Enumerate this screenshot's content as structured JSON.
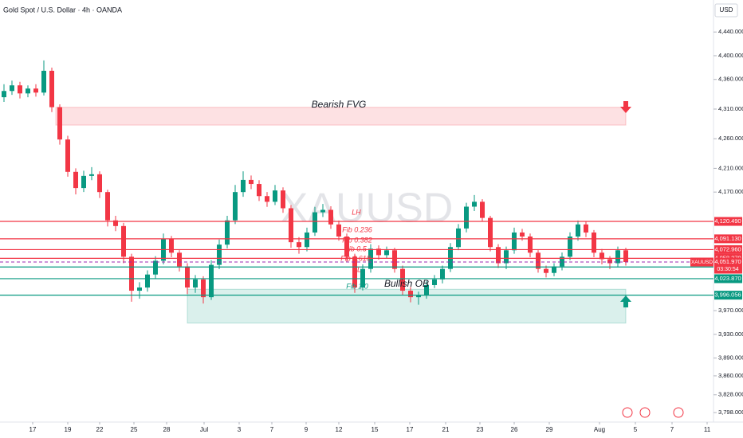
{
  "chart_data": {
    "type": "candlestick",
    "title": "Gold Spot / U.S. Dollar · 4h · OANDA",
    "currency": "USD",
    "watermark": "XAUUSD",
    "up_color": "#089981",
    "down_color": "#f23645",
    "open": [
      4330.0,
      4340.5,
      4350.0,
      4336.4,
      4344.6,
      4337.8,
      4374.6,
      4313.2,
      4258.7,
      4204.1,
      4176.8,
      4197.3,
      4200.0,
      4170.0,
      4122.3,
      4112.7,
      4060.9,
      4003.6,
      4009.0,
      4030.9,
      4054.1,
      4090.9,
      4067.7,
      4044.5,
      4009.0,
      4022.7,
      3992.7,
      4047.2,
      4081.3,
      4122.3,
      4170.0,
      4190.5,
      4183.6,
      4163.2,
      4153.6,
      4172.7,
      4142.7,
      4085.4,
      4077.2,
      4101.8,
      4135.9,
      4140.0,
      4115.4,
      4095.0,
      4060.9,
      4009.0,
      4040.4,
      4074.5,
      4063.6,
      4071.8,
      4040.4,
      4003.6,
      3992.7,
      3995.4,
      4013.1,
      4022.7,
      4040.4,
      4077.2,
      4108.6,
      4145.4,
      4153.6,
      4126.4,
      4077.2,
      4050.0,
      4071.8,
      4101.8,
      4095.0,
      4067.7,
      4040.4,
      4033.6,
      4044.5,
      4060.9,
      4095.0,
      4115.4,
      4101.8,
      4067.7,
      4056.8,
      4050.0,
      4071.8
    ],
    "high": [
      4352,
      4358,
      4356,
      4350,
      4352,
      4392,
      4380,
      4318,
      4265,
      4210,
      4206,
      4212,
      4205,
      4174,
      4130,
      4118,
      4066,
      4018,
      4038,
      4062,
      4100,
      4096,
      4072,
      4050,
      4030,
      4028,
      4055,
      4090,
      4130,
      4182,
      4205,
      4198,
      4190,
      4170,
      4182,
      4178,
      4148,
      4094,
      4110,
      4145,
      4150,
      4146,
      4122,
      4100,
      4066,
      4048,
      4082,
      4080,
      4078,
      4076,
      4046,
      4010,
      4002,
      4020,
      4030,
      4046,
      4084,
      4116,
      4152,
      4165,
      4158,
      4130,
      4082,
      4078,
      4110,
      4108,
      4100,
      4072,
      4046,
      4050,
      4068,
      4102,
      4122,
      4120,
      4106,
      4074,
      4062,
      4078,
      4076
    ],
    "low": [
      4322,
      4334,
      4328,
      4330,
      4331,
      4333,
      4305,
      4250,
      4196,
      4166,
      4170,
      4190,
      4160,
      4112,
      4104,
      4050,
      3985,
      3990,
      4002,
      4024,
      4048,
      4060,
      4036,
      3998,
      4000,
      3982,
      3988,
      4040,
      4075,
      4116,
      4162,
      4175,
      4155,
      4145,
      4148,
      4135,
      4076,
      4066,
      4070,
      4096,
      4128,
      4108,
      4088,
      4052,
      4000,
      4004,
      4034,
      4056,
      4058,
      4034,
      3996,
      3984,
      3980,
      3990,
      4008,
      4016,
      4035,
      4072,
      4102,
      4138,
      4120,
      4070,
      4042,
      4040,
      4066,
      4088,
      4060,
      4034,
      4026,
      4028,
      4038,
      4055,
      4088,
      4094,
      4060,
      4048,
      4040,
      4044,
      4046
    ],
    "close": [
      4340.5,
      4350.0,
      4336.4,
      4344.6,
      4337.8,
      4374.6,
      4313.2,
      4258.7,
      4204.1,
      4176.8,
      4197.3,
      4200.0,
      4170.0,
      4122.3,
      4112.7,
      4060.9,
      4003.6,
      4009.0,
      4030.9,
      4054.1,
      4090.9,
      4067.7,
      4044.5,
      4009.0,
      4022.7,
      3992.7,
      4047.2,
      4081.3,
      4122.3,
      4170.0,
      4190.5,
      4183.6,
      4163.2,
      4153.6,
      4172.7,
      4142.7,
      4085.4,
      4077.2,
      4101.8,
      4135.9,
      4140.0,
      4115.4,
      4095.0,
      4060.9,
      4009.0,
      4040.4,
      4074.5,
      4063.6,
      4071.8,
      4040.4,
      4003.6,
      3992.7,
      3995.4,
      4013.1,
      4022.7,
      4040.4,
      4077.2,
      4108.6,
      4145.4,
      4153.6,
      4126.4,
      4077.2,
      4050.0,
      4071.8,
      4101.8,
      4095.0,
      4067.7,
      4040.4,
      4033.6,
      4044.5,
      4060.9,
      4095.0,
      4115.4,
      4101.8,
      4067.7,
      4056.8,
      4050.0,
      4071.8,
      4051.97
    ],
    "xlim": [
      -0.5,
      89
    ],
    "xticks": [
      {
        "value": 3.6,
        "label": "17"
      },
      {
        "value": 8,
        "label": "19"
      },
      {
        "value": 12,
        "label": "22"
      },
      {
        "value": 16.3,
        "label": "25"
      },
      {
        "value": 20.4,
        "label": "28"
      },
      {
        "value": 25.1,
        "label": "Jul"
      },
      {
        "value": 29.5,
        "label": "3"
      },
      {
        "value": 33.6,
        "label": "7"
      },
      {
        "value": 37.9,
        "label": "9"
      },
      {
        "value": 42,
        "label": "12"
      },
      {
        "value": 46.5,
        "label": "15"
      },
      {
        "value": 50.9,
        "label": "17"
      },
      {
        "value": 55.4,
        "label": "21"
      },
      {
        "value": 59.7,
        "label": "23"
      },
      {
        "value": 64,
        "label": "26"
      },
      {
        "value": 68.4,
        "label": "29"
      },
      {
        "value": 74.7,
        "label": "Aug"
      },
      {
        "value": 79.2,
        "label": "5"
      },
      {
        "value": 83.8,
        "label": "7"
      },
      {
        "value": 88.2,
        "label": "11"
      }
    ],
    "ylim": [
      3782,
      4494
    ],
    "yticks": [
      {
        "value": 4440,
        "label": "4,440.000"
      },
      {
        "value": 4400,
        "label": "4,400.000"
      },
      {
        "value": 4360,
        "label": "4,360.000"
      },
      {
        "value": 4310,
        "label": "4,310.000"
      },
      {
        "value": 4260,
        "label": "4,260.000"
      },
      {
        "value": 4210,
        "label": "4,210.000"
      },
      {
        "value": 4170,
        "label": "4,170.000"
      },
      {
        "value": 3970,
        "label": "3,970.000"
      },
      {
        "value": 3930,
        "label": "3,930.000"
      },
      {
        "value": 3890,
        "label": "3,890.000"
      },
      {
        "value": 3860,
        "label": "3,860.000"
      },
      {
        "value": 3828,
        "label": "3,828.000"
      },
      {
        "value": 3798,
        "label": "3,798.000"
      }
    ],
    "levels": [
      {
        "value": 4120.49,
        "label": "4,120.490",
        "color": "#f23645"
      },
      {
        "value": 4091.13,
        "label": "4,091.130",
        "color": "#f23645"
      },
      {
        "value": 4072.96,
        "label": "4,072.960",
        "color": "#f23645"
      },
      {
        "value": 4058.27,
        "label": "4,058.270",
        "color": "#f23645"
      },
      {
        "value": 4043.59,
        "label": "4,043.590",
        "color": "#089981"
      },
      {
        "value": 4023.87,
        "label": "4,023.870",
        "color": "#089981"
      },
      {
        "value": 3996.056,
        "label": "3,996.056",
        "color": "#089981"
      }
    ],
    "last_price": {
      "symbol": "XAUUSD",
      "value": 4051.97,
      "label": "4,051.970",
      "countdown": "03:30:54",
      "color": "#f23645"
    },
    "zones": [
      {
        "name": "Bearish FVG",
        "low": 4283,
        "high": 4313,
        "start": 6.5,
        "end": 78,
        "color": "#f23645"
      },
      {
        "name": "Bullish OB",
        "low": 3949,
        "high": 4006,
        "start": 23,
        "end": 78,
        "color": "#089981"
      }
    ],
    "annotations": [
      "LH",
      "Fib 0.236",
      "Fib 0.382",
      "Fib 0.5",
      "Fib 0.618",
      "LL",
      "Fib 1.0"
    ]
  }
}
